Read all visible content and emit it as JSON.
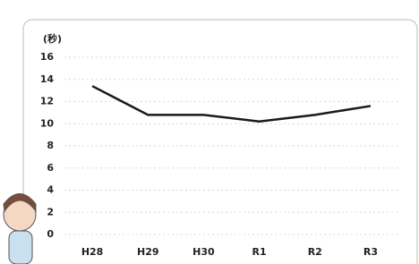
{
  "chart_data": {
    "type": "line",
    "y_label": "(秒)",
    "categories": [
      "H28",
      "H29",
      "H30",
      "R1",
      "R2",
      "R3"
    ],
    "series": [
      {
        "color": "#1a1a1a",
        "values": [
          13.4,
          10.8,
          10.8,
          10.2,
          10.8,
          11.6
        ]
      }
    ],
    "ylim": [
      0,
      16
    ],
    "yticks": [
      0,
      2,
      4,
      6,
      8,
      10,
      12,
      14,
      16
    ],
    "grid": true
  }
}
